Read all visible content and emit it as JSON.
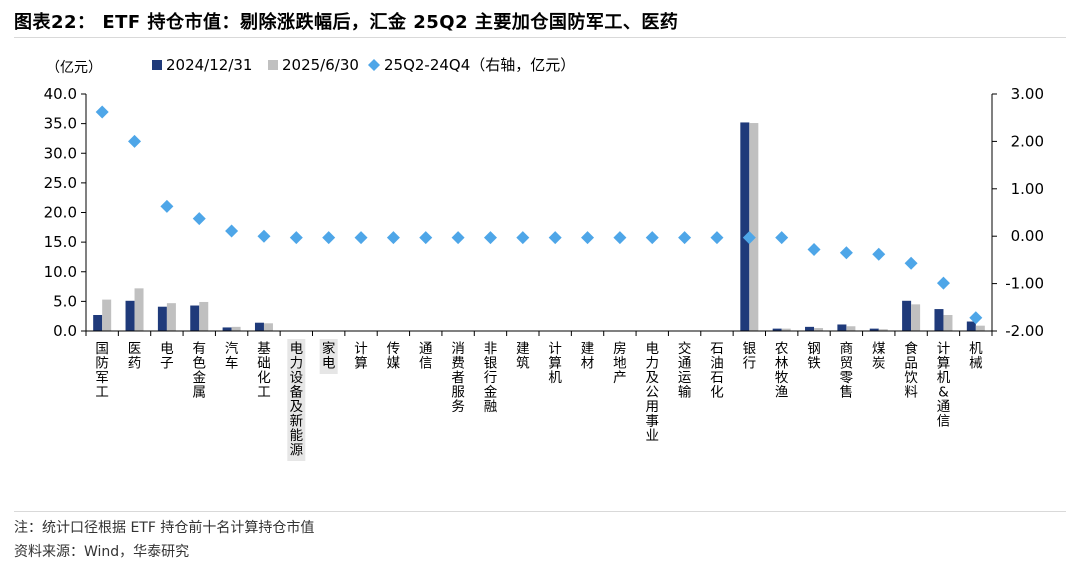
{
  "title": "图表22： ETF 持仓市值：剔除涨跌幅后，汇金 25Q2 主要加仓国防军工、医药",
  "note": "注：统计口径根据 ETF 持仓前十名计算持仓市值",
  "source": "资料来源：Wind，华泰研究",
  "colors": {
    "series1": "#1f3a7a",
    "series2": "#c0c0c0",
    "series3": "#4ea6e8",
    "highlight_box": "#e6e6e6"
  },
  "chart_data": {
    "type": "bar",
    "ylabel": "（亿元）",
    "ylim": [
      0,
      40
    ],
    "yticks": [
      "40.0",
      "35.0",
      "30.0",
      "25.0",
      "20.0",
      "15.0",
      "10.0",
      "5.0",
      "0.0"
    ],
    "y2lim": [
      -2,
      3
    ],
    "y2ticks": [
      "3.00",
      "2.00",
      "1.00",
      "0.00",
      "-1.00",
      "-2.00"
    ],
    "legend_position": "top",
    "grid": false,
    "categories": [
      "国防军工",
      "医药",
      "电子",
      "有色金属",
      "汽车",
      "基础化工",
      "电力设备及新能源",
      "家电",
      "计算",
      "传媒",
      "通信",
      "消费者服务",
      "非银行金融",
      "建筑",
      "计算机",
      "建材",
      "房地产",
      "电力及公用事业",
      "交通运输",
      "石油石化",
      "银行",
      "农林牧渔",
      "钢铁",
      "商贸零售",
      "煤炭",
      "食品饮料",
      "计算机&通信",
      "机械"
    ],
    "highlighted_categories": [
      "电力设备及新能源",
      "家电"
    ],
    "series": [
      {
        "name": "2024/12/31",
        "type": "bar",
        "axis": "left",
        "values": [
          2.7,
          5.1,
          4.1,
          4.3,
          0.6,
          1.4,
          0,
          0,
          0,
          0,
          0,
          0,
          0,
          0,
          0,
          0,
          0,
          0,
          0,
          0,
          35.2,
          0.4,
          0.7,
          1.1,
          0.4,
          5.1,
          3.7,
          1.6
        ]
      },
      {
        "name": "2025/6/30",
        "type": "bar",
        "axis": "left",
        "values": [
          5.3,
          7.2,
          4.7,
          4.9,
          0.7,
          1.3,
          0,
          0,
          0,
          0,
          0,
          0,
          0,
          0,
          0,
          0,
          0,
          0,
          0,
          0,
          35.1,
          0.4,
          0.5,
          0.8,
          0.3,
          4.5,
          2.7,
          0.9
        ]
      },
      {
        "name": "25Q2-24Q4（右轴，亿元）",
        "type": "scatter",
        "axis": "right",
        "values": [
          2.62,
          2.0,
          0.63,
          0.37,
          0.11,
          0.0,
          -0.03,
          -0.03,
          -0.03,
          -0.03,
          -0.03,
          -0.03,
          -0.03,
          -0.03,
          -0.03,
          -0.03,
          -0.03,
          -0.03,
          -0.03,
          -0.03,
          -0.03,
          -0.03,
          -0.28,
          -0.35,
          -0.38,
          -0.57,
          -0.99,
          -1.72
        ]
      }
    ]
  }
}
